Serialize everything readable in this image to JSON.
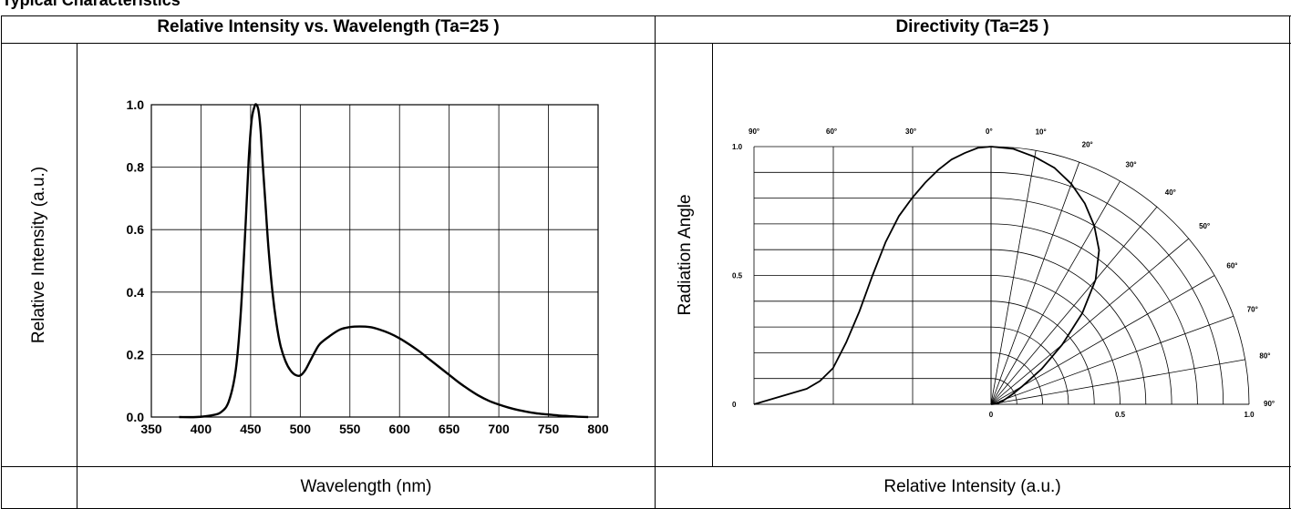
{
  "page": {
    "heading": "Typical Characteristics"
  },
  "headers": {
    "left": "Relative Intensity vs. Wavelength (Ta=25    )",
    "right": "Directivity (Ta=25    )"
  },
  "footers": {
    "left": "Wavelength (nm)",
    "right": "Relative Intensity (a.u.)"
  },
  "chart_data": [
    {
      "type": "line",
      "title": "Relative Intensity vs. Wavelength (Ta=25    )",
      "xlabel": "Wavelength (nm)",
      "ylabel": "Relative Intensity (a.u.)",
      "xlim": [
        350,
        800
      ],
      "ylim": [
        0,
        1.0
      ],
      "grid": true,
      "x_ticks": [
        "350",
        "400",
        "450",
        "500",
        "550",
        "600",
        "650",
        "700",
        "750",
        "800"
      ],
      "y_ticks": [
        "0.0",
        "0.2",
        "0.4",
        "0.6",
        "0.8",
        "1.0"
      ],
      "series": [
        {
          "x": [
            378,
            395,
            410,
            420,
            428,
            435,
            440,
            445,
            448,
            451,
            454,
            456,
            458,
            460,
            462,
            465,
            468,
            472,
            476,
            480,
            485,
            490,
            495,
            500,
            505,
            510,
            515,
            520,
            530,
            540,
            550,
            560,
            570,
            580,
            590,
            600,
            610,
            620,
            630,
            640,
            650,
            660,
            670,
            680,
            690,
            700,
            710,
            720,
            730,
            740,
            750,
            760,
            770,
            780,
            790
          ],
          "y": [
            0.0,
            0.0,
            0.005,
            0.015,
            0.05,
            0.15,
            0.33,
            0.62,
            0.82,
            0.95,
            0.995,
            1.0,
            0.98,
            0.92,
            0.82,
            0.68,
            0.54,
            0.4,
            0.3,
            0.23,
            0.18,
            0.15,
            0.135,
            0.133,
            0.15,
            0.18,
            0.21,
            0.235,
            0.26,
            0.28,
            0.288,
            0.29,
            0.288,
            0.28,
            0.268,
            0.252,
            0.232,
            0.21,
            0.185,
            0.16,
            0.135,
            0.11,
            0.088,
            0.068,
            0.052,
            0.04,
            0.03,
            0.022,
            0.016,
            0.011,
            0.008,
            0.005,
            0.003,
            0.001,
            0.0
          ]
        }
      ]
    },
    {
      "type": "line",
      "title": "Directivity (Ta=25    )",
      "xlabel": "Relative Intensity (a.u.)",
      "ylabel": "Radiation Angle",
      "y_ticks": [
        "0",
        "0.5",
        "1.0"
      ],
      "x_ticks": [
        "0",
        "0.5",
        "1.0"
      ],
      "angle_labels": {
        "top": [
          "90",
          "60",
          "30",
          "0"
        ],
        "polar": [
          "10",
          "20",
          "30",
          "40",
          "50",
          "60",
          "70",
          "80",
          "90"
        ],
        "degree_symbol": "°"
      },
      "grid": true,
      "series": [
        {
          "angle_deg": [
            0,
            5,
            10,
            15,
            20,
            25,
            30,
            35,
            40,
            45,
            50,
            55,
            60,
            65,
            70,
            75,
            80,
            85,
            90
          ],
          "relative_intensity": [
            1.0,
            0.995,
            0.975,
            0.95,
            0.91,
            0.86,
            0.8,
            0.73,
            0.63,
            0.5,
            0.36,
            0.24,
            0.14,
            0.09,
            0.06,
            0.045,
            0.03,
            0.015,
            0.0
          ]
        }
      ]
    }
  ]
}
